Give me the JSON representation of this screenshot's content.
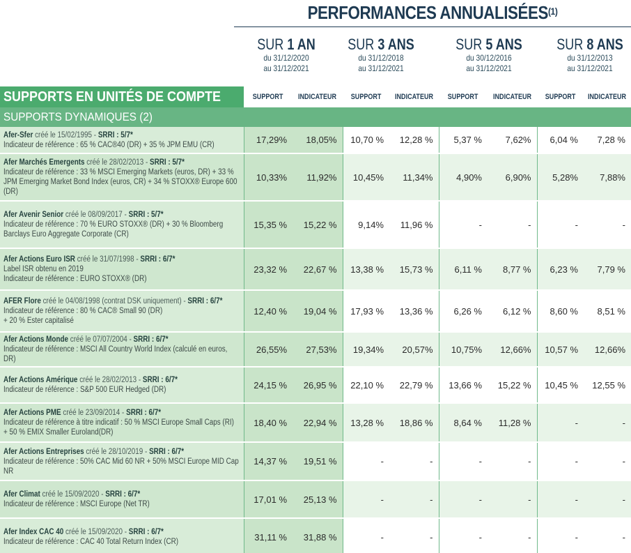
{
  "header": {
    "title": "PERFORMANCES ANNUALISÉES",
    "title_note": "(1)"
  },
  "periods": [
    {
      "sur": "SUR",
      "big": "1 AN",
      "from": "du 31/12/2020",
      "to": "au 31/12/2021"
    },
    {
      "sur": "SUR",
      "big": "3 ANS",
      "from": "du 31/12/2018",
      "to": "au 31/12/2021"
    },
    {
      "sur": "SUR",
      "big": "5 ANS",
      "from": "du 30/12/2016",
      "to": "au 31/12/2021"
    },
    {
      "sur": "SUR",
      "big": "8 ANS",
      "from": "du 31/12/2013",
      "to": "au 31/12/2021"
    }
  ],
  "columns": {
    "support": "SUPPORT",
    "indicateur": "INDICATEUR"
  },
  "section_title": "SUPPORTS EN UNITÉS DE COMPTE",
  "subsection_title": "SUPPORTS DYNAMIQUES (2)",
  "colors": {
    "green_dark": "#4bab6e",
    "green_mid": "#68b584",
    "green_light": "#d8ecd8",
    "navy": "#1e3a52"
  },
  "funds": [
    {
      "name": "Afer-Sfer",
      "created": "créé le 15/02/1995 - ",
      "srri": "SRRI : 5/7*",
      "lines": [
        "Indicateur de référence : 65 % CAC®40 (DR) + 35 % JPM EMU (CR)"
      ],
      "values": [
        "17,29%",
        "18,05%",
        "10,70 %",
        "12,28 %",
        "5,37 %",
        "7,62%",
        "6,04 %",
        "7,28 %"
      ]
    },
    {
      "name": "Afer Marchés Emergents",
      "created": "créé le 28/02/2013 - ",
      "srri": "SRRI : 5/7*",
      "lines": [
        "Indicateur de référence : 33 % MSCI Emerging Markets (euros, DR) + 33 % JPM Emerging Market Bond Index (euros, CR) + 34 % STOXX® Europe 600 (DR)"
      ],
      "values": [
        "10,33%",
        "11,92%",
        "10,45%",
        "11,34%",
        "4,90%",
        "6,90%",
        "5,28%",
        "7,88%"
      ]
    },
    {
      "name": "Afer Avenir Senior",
      "created": "créé le 08/09/2017 - ",
      "srri": "SRRI : 5/7*",
      "lines": [
        "Indicateur de référence : 70 % EURO STOXX® (DR) + 30 % Bloomberg Barclays Euro Aggregate Corporate (CR)"
      ],
      "values": [
        "15,35 %",
        "15,22 %",
        "9,14%",
        "11,96 %",
        "-",
        "-",
        "-",
        "-"
      ]
    },
    {
      "name": "Afer Actions Euro ISR",
      "created": "créé le 31/07/1998 - ",
      "srri": "SRRI : 6/7*",
      "lines": [
        "Label ISR obtenu en 2019",
        "Indicateur de référence : EURO STOXX® (DR)"
      ],
      "values": [
        "23,32 %",
        "22,67 %",
        "13,38 %",
        "15,73 %",
        "6,11 %",
        "8,77 %",
        "6,23 %",
        "7,79 %"
      ]
    },
    {
      "name": "AFER Flore",
      "created": "créé le 04/08/1998 (contrat DSK uniquement) - ",
      "srri": "SRRI : 6/7*",
      "lines": [
        "Indicateur de référence : 80 % CAC® Small 90 (DR)",
        "+ 20 % Ester capitalisé"
      ],
      "values": [
        "12,40 %",
        "19,04 %",
        "17,93 %",
        "13,36 %",
        "6,26 %",
        "6,12 %",
        "8,60 %",
        "8,51 %"
      ]
    },
    {
      "name": "Afer Actions Monde",
      "created": "créé le 07/07/2004 - ",
      "srri": "SRRI : 6/7*",
      "lines": [
        "Indicateur de référence : MSCI All Country World Index (calculé en euros, DR)"
      ],
      "values": [
        "26,55%",
        "27,53%",
        "19,34%",
        "20,57%",
        "10,75%",
        "12,66%",
        "10,57 %",
        "12,66%"
      ]
    },
    {
      "name": "Afer Actions Amérique",
      "created": "créé le 28/02/2013 - ",
      "srri": "SRRI : 6/7*",
      "lines": [
        "Indicateur de référence : S&P 500 EUR Hedged (DR)"
      ],
      "values": [
        "24,15 %",
        "26,95 %",
        "22,10 %",
        "22,79 %",
        "13,66 %",
        "15,22 %",
        "10,45 %",
        "12,55 %"
      ]
    },
    {
      "name": "Afer Actions PME",
      "created": "créé le 23/09/2014 - ",
      "srri": "SRRI : 6/7*",
      "lines": [
        "Indicateur de référence à titre indicatif : 50 % MSCI Europe Small Caps (RI) + 50 % EMIX Smaller Euroland(DR)"
      ],
      "values": [
        "18,40 %",
        "22,94 %",
        "13,28 %",
        "18,86 %",
        "8,64 %",
        "11,28 %",
        "-",
        "-"
      ]
    },
    {
      "name": "Afer Actions Entreprises",
      "created": "créé le 28/10/2019 - ",
      "srri": "SRRI : 6/7*",
      "lines": [
        "Indicateur de référence : 50% CAC Mid 60 NR + 50% MSCI Europe MID Cap NR"
      ],
      "values": [
        "14,37 %",
        "19,51 %",
        "-",
        "-",
        "-",
        "-",
        "-",
        "-"
      ]
    },
    {
      "name": "Afer Climat",
      "created": "créé le 15/09/2020 - ",
      "srri": "SRRI : 6/7*",
      "lines": [
        "Indicateur de référence : MSCI Europe (Net TR)"
      ],
      "values": [
        "17,01 %",
        "25,13 %",
        "-",
        "-",
        "-",
        "-",
        "-",
        "-"
      ]
    },
    {
      "name": "Afer Index CAC 40",
      "created": "créé le 15/09/2020 - ",
      "srri": "SRRI : 6/7*",
      "lines": [
        "Indicateur de référence : CAC 40 Total Return Index (CR)"
      ],
      "values": [
        "31,11 %",
        "31,88 %",
        "-",
        "-",
        "-",
        "-",
        "-",
        "-"
      ]
    }
  ]
}
